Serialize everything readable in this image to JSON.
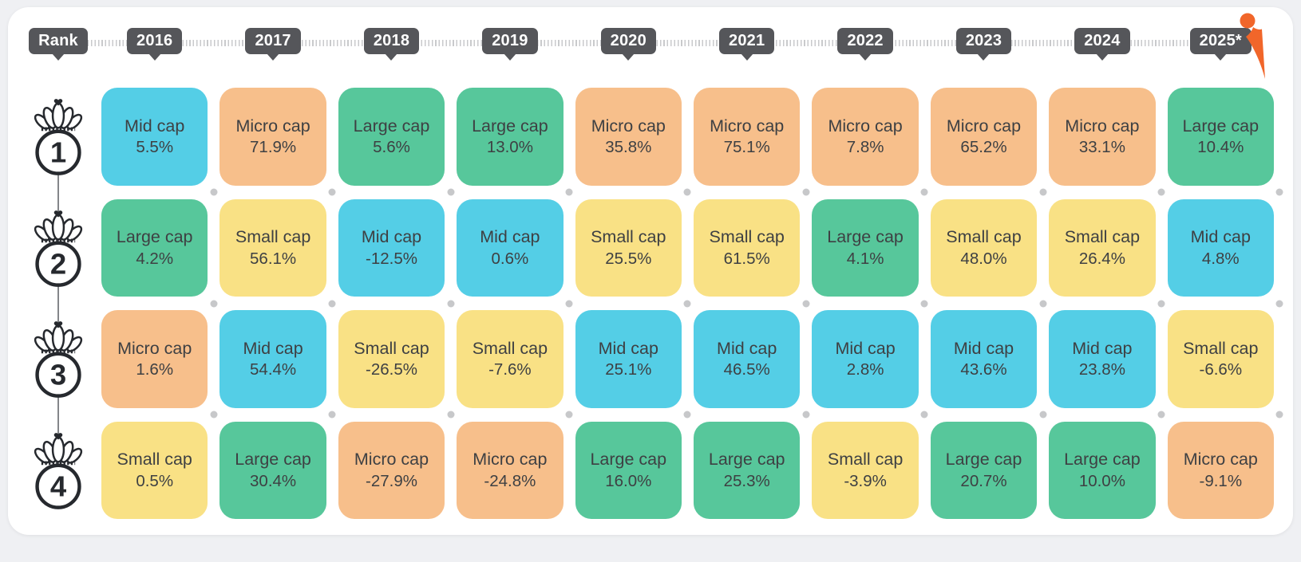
{
  "header": {
    "rank_label": "Rank"
  },
  "theme": {
    "badge_bg": "#55565a",
    "badge_text": "#ffffff",
    "card_text": "#3e4043",
    "dot_color": "#c7c8ca",
    "connector_color": "#84868a",
    "crown_color": "#26292e",
    "logo_color": "#f1662a",
    "panel_bg": "#ffffff",
    "page_bg": "#eff0f3"
  },
  "chart_data": {
    "type": "table",
    "columns": [
      "2016",
      "2017",
      "2018",
      "2019",
      "2020",
      "2021",
      "2022",
      "2023",
      "2024",
      "2025*"
    ],
    "rank_labels": [
      "1",
      "2",
      "3",
      "4"
    ],
    "value_unit": "%",
    "category_colors": {
      "Large cap": "#57c79b",
      "Mid cap": "#54cee6",
      "Small cap": "#f9e185",
      "Micro cap": "#f7bf8b"
    },
    "rows": [
      {
        "rank": "1",
        "cells": [
          {
            "category": "Mid cap",
            "value": 5.5
          },
          {
            "category": "Micro cap",
            "value": 71.9
          },
          {
            "category": "Large cap",
            "value": 5.6
          },
          {
            "category": "Large cap",
            "value": 13.0
          },
          {
            "category": "Micro cap",
            "value": 35.8
          },
          {
            "category": "Micro cap",
            "value": 75.1
          },
          {
            "category": "Micro cap",
            "value": 7.8
          },
          {
            "category": "Micro cap",
            "value": 65.2
          },
          {
            "category": "Micro cap",
            "value": 33.1
          },
          {
            "category": "Large cap",
            "value": 10.4
          }
        ]
      },
      {
        "rank": "2",
        "cells": [
          {
            "category": "Large cap",
            "value": 4.2
          },
          {
            "category": "Small cap",
            "value": 56.1
          },
          {
            "category": "Mid cap",
            "value": -12.5
          },
          {
            "category": "Mid cap",
            "value": 0.6
          },
          {
            "category": "Small cap",
            "value": 25.5
          },
          {
            "category": "Small cap",
            "value": 61.5
          },
          {
            "category": "Large cap",
            "value": 4.1
          },
          {
            "category": "Small cap",
            "value": 48.0
          },
          {
            "category": "Small cap",
            "value": 26.4
          },
          {
            "category": "Mid cap",
            "value": 4.8
          }
        ]
      },
      {
        "rank": "3",
        "cells": [
          {
            "category": "Micro cap",
            "value": 1.6
          },
          {
            "category": "Mid cap",
            "value": 54.4
          },
          {
            "category": "Small cap",
            "value": -26.5
          },
          {
            "category": "Small cap",
            "value": -7.6
          },
          {
            "category": "Mid cap",
            "value": 25.1
          },
          {
            "category": "Mid cap",
            "value": 46.5
          },
          {
            "category": "Mid cap",
            "value": 2.8
          },
          {
            "category": "Mid cap",
            "value": 43.6
          },
          {
            "category": "Mid cap",
            "value": 23.8
          },
          {
            "category": "Small cap",
            "value": -6.6
          }
        ]
      },
      {
        "rank": "4",
        "cells": [
          {
            "category": "Small cap",
            "value": 0.5
          },
          {
            "category": "Large cap",
            "value": 30.4
          },
          {
            "category": "Micro cap",
            "value": -27.9
          },
          {
            "category": "Micro cap",
            "value": -24.8
          },
          {
            "category": "Large cap",
            "value": 16.0
          },
          {
            "category": "Large cap",
            "value": 25.3
          },
          {
            "category": "Small cap",
            "value": -3.9
          },
          {
            "category": "Large cap",
            "value": 20.7
          },
          {
            "category": "Large cap",
            "value": 10.0
          },
          {
            "category": "Micro cap",
            "value": -9.1
          }
        ]
      }
    ]
  }
}
